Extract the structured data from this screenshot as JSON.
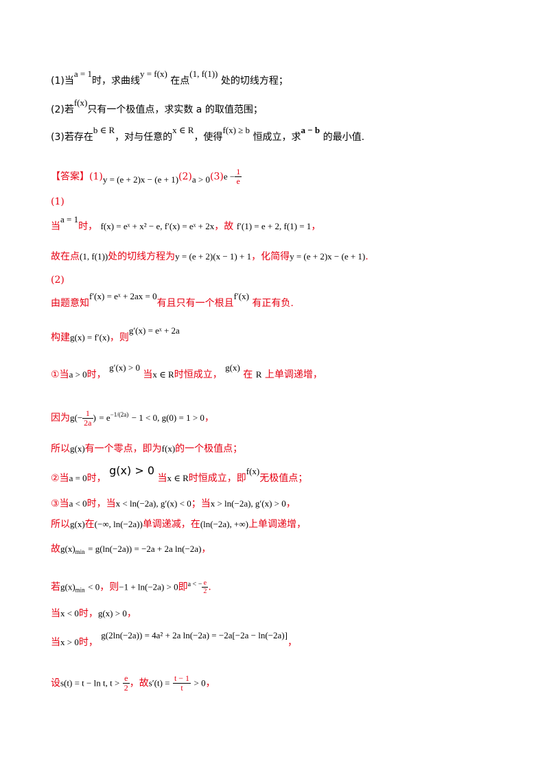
{
  "questions": {
    "q1_pre": "(1)当",
    "q1_a1": "a = 1",
    "q1_mid1": "时，求曲线",
    "q1_curve": "y = f(x)",
    "q1_mid2": "在点",
    "q1_point": "(1, f(1))",
    "q1_post": "处的切线方程；",
    "q2_pre": "(2)若",
    "q2_fx": "f(x)",
    "q2_post": "只有一个极值点，求实数 a 的取值范围；",
    "q3_pre": "(3)若存在",
    "q3_b": "b ∈ R",
    "q3_mid1": "，对与任意的",
    "q3_x": "x ∈ R",
    "q3_mid2": "，使得",
    "q3_ineq": "f(x) ≥ b",
    "q3_mid3": "恒成立，求",
    "q3_ab": "a − b",
    "q3_post": "的最小值."
  },
  "answer": {
    "tag": "【答案】",
    "p1": "(1)",
    "a1": "y = (e + 2)x − (e + 1)",
    "p2": "(2)",
    "a2": "a > 0",
    "p3": "(3)",
    "a3_e": "e −",
    "a3_num": "1",
    "a3_den": "e"
  },
  "solution": {
    "s1_head": "(1)",
    "l1_pre": "当",
    "l1_a": "a = 1",
    "l1_mid": "时，",
    "l1_math": "f(x) = eˣ + x² − e, f′(x) = eˣ + 2x",
    "l1_gu": "，故",
    "l1_math2": "f′(1) = e + 2, f(1) = 1",
    "l1_end": "，",
    "l2_pre": "故在点",
    "l2_pt": "(1, f(1))",
    "l2_mid": "处的切线方程为",
    "l2_eq": "y = (e + 2)(x − 1) + 1",
    "l2_mid2": "，化简得",
    "l2_eq2": "y = (e + 2)x − (e + 1)",
    "l2_end": ".",
    "s2_head": "(2)",
    "l3_pre": "由题意知",
    "l3_eq": "f′(x) = eˣ + 2ax = 0",
    "l3_mid": "有且只有一个根且",
    "l3_fp": "f′(x)",
    "l3_end": "有正有负.",
    "l4_pre": "构建",
    "l4_eq": "g(x) = f′(x)",
    "l4_mid": "，则",
    "l4_eq2": "g′(x) = eˣ + 2a",
    "l5_pre": "①当",
    "l5_a": "a > 0",
    "l5_t1": "时，",
    "l5_g": "g′(x) > 0",
    "l5_t2": "当",
    "l5_x": "x ∈ R",
    "l5_t3": "时恒成立，",
    "l5_gx": "g(x)",
    "l5_t4": "在",
    "l5_R": "R",
    "l5_t5": "上单调递增，",
    "l6_pre": "因为",
    "l6_g": "g",
    "l6_num": "1",
    "l6_den": "2a",
    "l6_eq": "= e",
    "l6_exp": "−1/(2a)",
    "l6_rest": "− 1 < 0, g(0) = 1 > 0",
    "l6_end": "，",
    "l7_pre": "所以",
    "l7_g": "g(x)",
    "l7_mid": "有一个零点，即为",
    "l7_f": "f(x)",
    "l7_end": "的一个极值点；",
    "l8_pre": "②当",
    "l8_a": "a = 0",
    "l8_t1": "时，",
    "l8_g": "g(x) > 0",
    "l8_t2": "当",
    "l8_x": "x ∈ R",
    "l8_t3": "时恒成立，即",
    "l8_f": "f(x)",
    "l8_end": "无极值点；",
    "l9_pre": "③当",
    "l9_a": "a < 0",
    "l9_t1": "时，当",
    "l9_c1": "x < ln(−2a), g′(x) < 0",
    "l9_t2": "；当",
    "l9_c2": "x > ln(−2a), g′(x) > 0",
    "l9_end": "，",
    "l10_pre": "所以",
    "l10_g": "g(x)",
    "l10_t1": "在",
    "l10_i1": "(−∞, ln(−2a))",
    "l10_t2": "单调递减，在",
    "l10_i2": "(ln(−2a), +∞)",
    "l10_end": "上单调递增，",
    "l11_pre": "故",
    "l11_eq": "g(x)",
    "l11_min": "min",
    "l11_rest": "= g(ln(−2a)) = −2a + 2a ln(−2a)",
    "l11_end": "，",
    "l12_pre": "若",
    "l12_g": "g(x)",
    "l12_min": "min",
    "l12_lt": "< 0",
    "l12_t1": "，则",
    "l12_ineq": "−1 + ln(−2a) > 0",
    "l12_t2": "即",
    "l12_a": "a < −",
    "l12_num": "e",
    "l12_den": "2",
    "l12_end": ".",
    "l13_pre": "当",
    "l13_x": "x < 0",
    "l13_t1": "时，",
    "l13_g": "g(x) > 0",
    "l13_end": "，",
    "l14_pre": "当",
    "l14_x": "x > 0",
    "l14_t1": "时，",
    "l14_eq": "g(2ln(−2a)) = 4a² + 2a ln(−2a) = −2a[−2a − ln(−2a)]",
    "l14_end": "，",
    "l15_pre": "设",
    "l15_s": "s(t) = t − ln t, t >",
    "l15_num": "e",
    "l15_den": "2",
    "l15_t1": "，故",
    "l15_sp": "s′(t) =",
    "l15_num2": "t − 1",
    "l15_den2": "t",
    "l15_gt": "> 0",
    "l15_end": "，"
  }
}
